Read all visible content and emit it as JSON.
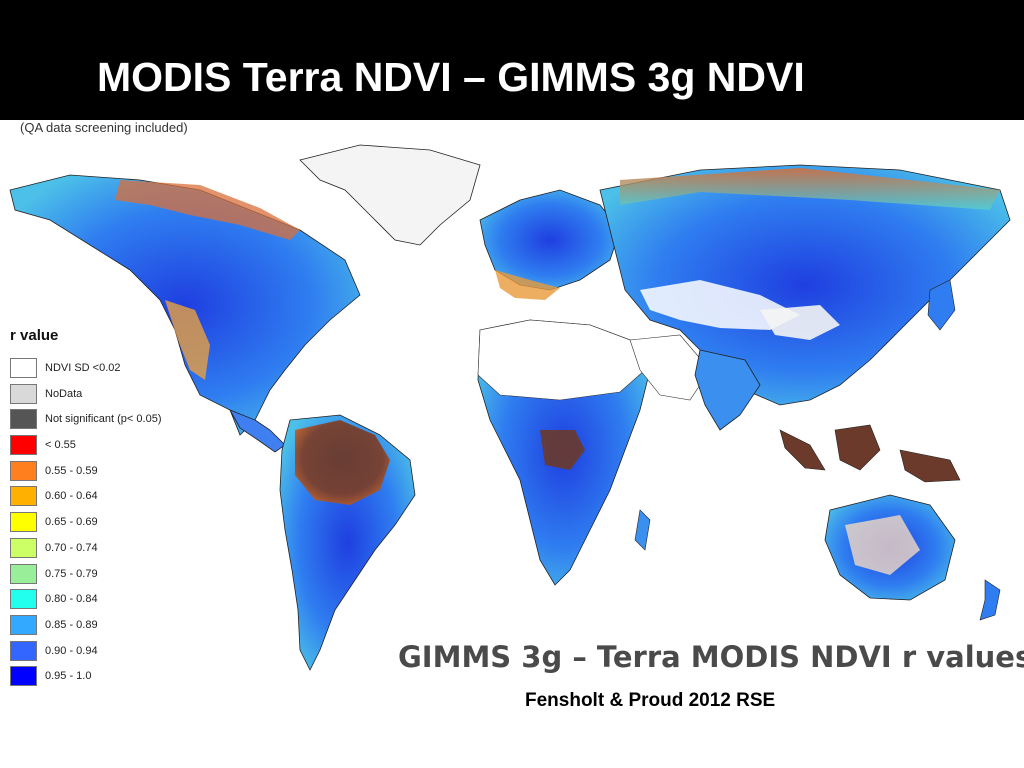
{
  "slide": {
    "title": "MODIS Terra NDVI – GIMMS 3g NDVI",
    "qa_note": "(QA data screening included)",
    "caption": "GIMMS 3g – Terra MODIS NDVI r values",
    "citation": "Fensholt & Proud 2012 RSE"
  },
  "legend": {
    "title": "r value",
    "items": [
      {
        "label": "NDVI SD <0.02",
        "color": "#ffffff"
      },
      {
        "label": "NoData",
        "color": "#d9d9d9"
      },
      {
        "label": "Not significant (p< 0.05)",
        "color": "#555555"
      },
      {
        "label": "< 0.55",
        "color": "#ff0000"
      },
      {
        "label": "0.55 - 0.59",
        "color": "#ff7f1f"
      },
      {
        "label": "0.60 - 0.64",
        "color": "#ffb000"
      },
      {
        "label": "0.65 - 0.69",
        "color": "#ffff00"
      },
      {
        "label": "0.70 - 0.74",
        "color": "#ccff66"
      },
      {
        "label": "0.75 - 0.79",
        "color": "#99ee99"
      },
      {
        "label": "0.80 - 0.84",
        "color": "#22ffee"
      },
      {
        "label": "0.85 - 0.89",
        "color": "#33aaff"
      },
      {
        "label": "0.90 - 0.94",
        "color": "#3366ff"
      },
      {
        "label": "0.95 - 1.0",
        "color": "#0000ff"
      }
    ]
  }
}
